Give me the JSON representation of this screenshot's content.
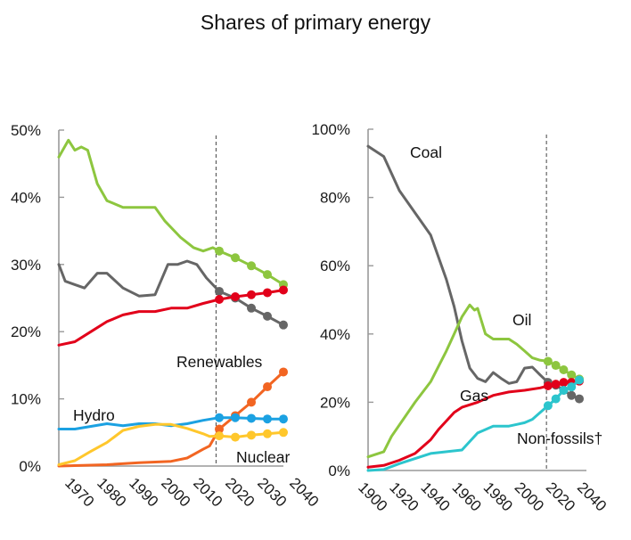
{
  "title": "Shares of primary energy",
  "chart_data": [
    {
      "type": "line",
      "title": "",
      "xlabel": "",
      "ylabel": "",
      "xlim": [
        1965,
        2040
      ],
      "ylim": [
        0,
        50
      ],
      "x_ticks": [
        1970,
        1980,
        1990,
        2000,
        2010,
        2020,
        2030,
        2040
      ],
      "y_ticks": [
        0,
        10,
        20,
        30,
        40,
        50
      ],
      "y_tick_labels": [
        "0%",
        "10%",
        "20%",
        "30%",
        "40%",
        "50%"
      ],
      "projection_start": 2014,
      "grid": false,
      "series": [
        {
          "name": "Oil",
          "color": "#8dc63f",
          "label": "",
          "x": [
            1965,
            1968,
            1970,
            1972,
            1974,
            1977,
            1980,
            1985,
            1988,
            1990,
            1995,
            1998,
            2003,
            2007,
            2010,
            2013,
            2015,
            2020,
            2025,
            2030,
            2035
          ],
          "values": [
            46,
            48.5,
            47,
            47.5,
            47,
            42,
            39.5,
            38.5,
            38.5,
            38.5,
            38.5,
            36.5,
            34,
            32.5,
            32,
            32.5,
            32,
            31,
            29.8,
            28.5,
            27
          ],
          "markers_from": 2015
        },
        {
          "name": "Coal",
          "color": "#666666",
          "label": "",
          "x": [
            1965,
            1967,
            1970,
            1973,
            1977,
            1980,
            1985,
            1990,
            1995,
            1999,
            2002,
            2005,
            2008,
            2011,
            2015,
            2020,
            2025,
            2030,
            2035
          ],
          "values": [
            30,
            27.5,
            27,
            26.5,
            28.7,
            28.7,
            26.5,
            25.3,
            25.5,
            30,
            30,
            30.5,
            30,
            28,
            26,
            25,
            23.5,
            22.3,
            21
          ],
          "markers_from": 2015
        },
        {
          "name": "Gas",
          "color": "#e2001a",
          "label": "",
          "x": [
            1965,
            1970,
            1975,
            1980,
            1985,
            1990,
            1995,
            2000,
            2005,
            2010,
            2015,
            2020,
            2025,
            2030,
            2035
          ],
          "values": [
            18,
            18.5,
            20,
            21.5,
            22.5,
            23,
            23,
            23.5,
            23.5,
            24.2,
            24.8,
            25.2,
            25.5,
            25.8,
            26.2
          ],
          "markers_from": 2015
        },
        {
          "name": "Renewables",
          "color": "#f26522",
          "label": "Renewables",
          "x": [
            1965,
            1980,
            1990,
            2000,
            2005,
            2010,
            2012,
            2015,
            2020,
            2025,
            2030,
            2035
          ],
          "values": [
            0,
            0.2,
            0.5,
            0.7,
            1.2,
            2.5,
            3.0,
            5.5,
            7.5,
            9.5,
            11.8,
            14
          ],
          "markers_from": 2015
        },
        {
          "name": "Hydro",
          "color": "#1ba1e2",
          "label": "Hydro",
          "x": [
            1965,
            1970,
            1980,
            1985,
            1990,
            1995,
            2000,
            2005,
            2010,
            2015,
            2020,
            2025,
            2030,
            2035
          ],
          "values": [
            5.5,
            5.5,
            6.3,
            6,
            6.3,
            6.3,
            6,
            6.3,
            6.8,
            7.2,
            7.2,
            7.1,
            7.0,
            7.0
          ],
          "markers_from": 2015
        },
        {
          "name": "Nuclear",
          "color": "#ffc72c",
          "label": "Nuclear",
          "x": [
            1965,
            1970,
            1975,
            1980,
            1985,
            1990,
            1995,
            2000,
            2005,
            2010,
            2012,
            2015,
            2020,
            2025,
            2030,
            2035
          ],
          "values": [
            0.2,
            0.8,
            2.2,
            3.5,
            5.3,
            5.9,
            6.2,
            6.2,
            5.6,
            4.8,
            4.4,
            4.5,
            4.3,
            4.6,
            4.8,
            5.0
          ],
          "markers_from": 2015
        }
      ]
    },
    {
      "type": "line",
      "title": "",
      "xlabel": "",
      "ylabel": "",
      "xlim": [
        1900,
        2040
      ],
      "ylim": [
        0,
        100
      ],
      "x_ticks": [
        1900,
        1920,
        1940,
        1960,
        1980,
        2000,
        2020,
        2040
      ],
      "y_ticks": [
        0,
        20,
        40,
        60,
        80,
        100
      ],
      "y_tick_labels": [
        "0%",
        "20%",
        "40%",
        "60%",
        "80%",
        "100%"
      ],
      "projection_start": 2014,
      "grid": false,
      "series": [
        {
          "name": "Coal",
          "color": "#666666",
          "label": "Coal",
          "x": [
            1900,
            1910,
            1920,
            1940,
            1950,
            1955,
            1960,
            1965,
            1970,
            1975,
            1980,
            1985,
            1990,
            1995,
            2000,
            2005,
            2010,
            2015,
            2020,
            2025,
            2030,
            2035
          ],
          "values": [
            95,
            92,
            82,
            69,
            56,
            48,
            38,
            30,
            27,
            26,
            28.7,
            27,
            25.5,
            26,
            30,
            30.3,
            28,
            25.8,
            25,
            23.5,
            22,
            21
          ],
          "markers_from": 2015
        },
        {
          "name": "Oil",
          "color": "#8dc63f",
          "label": "Oil",
          "x": [
            1900,
            1910,
            1915,
            1930,
            1940,
            1950,
            1955,
            1960,
            1965,
            1968,
            1970,
            1975,
            1980,
            1985,
            1990,
            1995,
            2000,
            2005,
            2010,
            2015,
            2020,
            2025,
            2030,
            2035
          ],
          "values": [
            4,
            5.5,
            10,
            20,
            26,
            35,
            40,
            45,
            48.5,
            47,
            47.5,
            40,
            38.5,
            38.5,
            38.5,
            37,
            35,
            33,
            32.3,
            32,
            30.8,
            29.5,
            28,
            26.8
          ],
          "markers_from": 2015
        },
        {
          "name": "Gas",
          "color": "#e2001a",
          "label": "Gas",
          "x": [
            1900,
            1910,
            1920,
            1930,
            1940,
            1945,
            1955,
            1960,
            1970,
            1980,
            1990,
            2000,
            2010,
            2015,
            2020,
            2025,
            2030,
            2035
          ],
          "values": [
            1,
            1.5,
            3,
            5,
            9,
            12,
            17,
            18.5,
            20,
            22,
            23,
            23.5,
            24.2,
            24.8,
            25.3,
            25.8,
            25.8,
            26.2
          ],
          "markers_from": 2015
        },
        {
          "name": "Non-fossils",
          "color": "#2cc5cd",
          "label": "Non-fossils†",
          "x": [
            1900,
            1910,
            1920,
            1940,
            1960,
            1970,
            1980,
            1990,
            1995,
            2000,
            2005,
            2010,
            2015,
            2020,
            2025,
            2030,
            2035
          ],
          "values": [
            0,
            0.3,
            2,
            5,
            6,
            11,
            13,
            13,
            13.5,
            14,
            15,
            17,
            19,
            21,
            23.5,
            24.5,
            26.5
          ],
          "markers_from": 2015
        }
      ]
    }
  ]
}
